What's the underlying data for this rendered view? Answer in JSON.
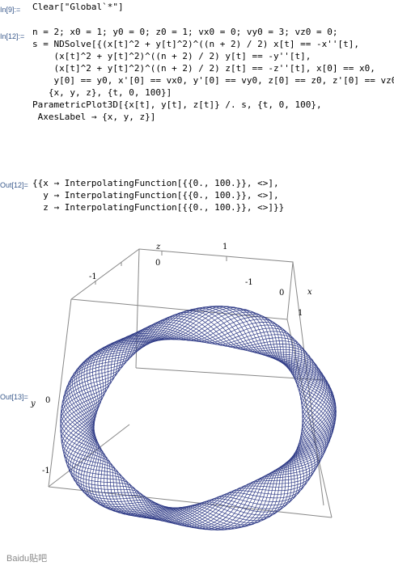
{
  "cells": {
    "in9_label": "In[9]:=",
    "in9_line1": "Clear[\"Global`*\"]",
    "in12_label": "In[12]:=",
    "in12_lines": [
      "n = 2; x0 = 1; y0 = 0; z0 = 1; vx0 = 0; vy0 = 3; vz0 = 0;",
      "s = NDSolve[{(x[t]^2 + y[t]^2)^((n + 2) / 2) x[t] == -x''[t],",
      "    (x[t]^2 + y[t]^2)^((n + 2) / 2) y[t] == -y''[t],",
      "    (x[t]^2 + y[t]^2)^((n + 2) / 2) z[t] == -z''[t], x[0] == x0,",
      "    y[0] == y0, x'[0] == vx0, y'[0] == vy0, z[0] == z0, z'[0] == vz0},",
      "   {x, y, z}, {t, 0, 100}]",
      "ParametricPlot3D[{x[t], y[t], z[t]} /. s, {t, 0, 100},",
      " AxesLabel → {x, y, z}]"
    ],
    "out12_label": "Out[12]=",
    "out12_lines": [
      "{{x → InterpolatingFunction[{{0., 100.}}, <>],",
      "  y → InterpolatingFunction[{{0., 100.}}, <>],",
      "  z → InterpolatingFunction[{{0., 100.}}, <>]}}"
    ],
    "out13_label": "Out[13]="
  },
  "plot": {
    "axes_labels": {
      "x": "x",
      "y": "y",
      "z": "z"
    },
    "z_ticks": [
      "0",
      "1"
    ],
    "top_ticks": [
      "-1",
      "0",
      "1"
    ],
    "y_ticks": [
      "0",
      "-1"
    ],
    "curve_color": "#2e3a86",
    "box_color": "#888888"
  },
  "chart_data": {
    "type": "line",
    "title": "",
    "xlabel": "x",
    "ylabel": "y",
    "zlabel": "z",
    "parameter": "t",
    "t_range": [
      0,
      100
    ],
    "axis_ticks": {
      "top": [
        -1,
        0,
        1
      ],
      "z": [
        0,
        1
      ],
      "y": [
        0,
        -1
      ]
    },
    "description_values": {
      "n": 2,
      "x0": 1,
      "y0": 0,
      "z0": 1,
      "vx0": 0,
      "vy0": 3,
      "vz0": 0
    }
  },
  "watermark": "Baidu贴吧"
}
